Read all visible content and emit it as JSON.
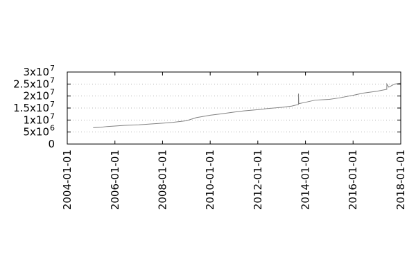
{
  "chart_data": {
    "type": "line",
    "title": "",
    "xlabel": "",
    "ylabel": "",
    "x_axis_type": "date",
    "xlim": [
      "2004-01-01",
      "2018-01-01"
    ],
    "ylim": [
      0,
      30000000
    ],
    "x_ticks": [
      "2004-01-01",
      "2006-01-01",
      "2008-01-01",
      "2010-01-01",
      "2012-01-01",
      "2014-01-01",
      "2016-01-01",
      "2018-01-01"
    ],
    "y_ticks": [
      {
        "value": 0,
        "label": "0",
        "exp": ""
      },
      {
        "value": 5000000,
        "label": "5x10",
        "exp": "6"
      },
      {
        "value": 10000000,
        "label": "1x10",
        "exp": "7"
      },
      {
        "value": 15000000,
        "label": "1.5x10",
        "exp": "7"
      },
      {
        "value": 20000000,
        "label": "2x10",
        "exp": "7"
      },
      {
        "value": 25000000,
        "label": "2.5x10",
        "exp": "7"
      },
      {
        "value": 30000000,
        "label": "3x10",
        "exp": "7"
      }
    ],
    "grid": true,
    "legend": "none",
    "colors": {
      "series": "#808080",
      "grid": "#b4b4b4",
      "axis": "#000000"
    },
    "series": [
      {
        "x": [
          "2005-02-01",
          "2005-06-01",
          "2005-09-01",
          "2006-01-01",
          "2006-06-01",
          "2007-01-01",
          "2007-06-01",
          "2008-01-01",
          "2008-06-01",
          "2009-01-01",
          "2009-06-01",
          "2010-01-01",
          "2010-06-01",
          "2011-01-01",
          "2011-06-01",
          "2012-01-01",
          "2012-06-01",
          "2013-01-01",
          "2013-06-01",
          "2013-09-15",
          "2013-09-16",
          "2013-09-20",
          "2014-01-01",
          "2014-06-01",
          "2015-01-01",
          "2015-06-01",
          "2016-01-01",
          "2016-06-01",
          "2017-01-01",
          "2017-06-01",
          "2017-06-02",
          "2017-07-01",
          "2017-10-01",
          "2018-01-01"
        ],
        "y": [
          6800000,
          7000000,
          7300000,
          7500000,
          7800000,
          8000000,
          8300000,
          8700000,
          9000000,
          9700000,
          11000000,
          12000000,
          12500000,
          13300000,
          13800000,
          14300000,
          14800000,
          15300000,
          15800000,
          16500000,
          21000000,
          16800000,
          17400000,
          18300000,
          18600000,
          19200000,
          20300000,
          21200000,
          22000000,
          22800000,
          25000000,
          23700000,
          25000000,
          25300000
        ]
      }
    ]
  }
}
